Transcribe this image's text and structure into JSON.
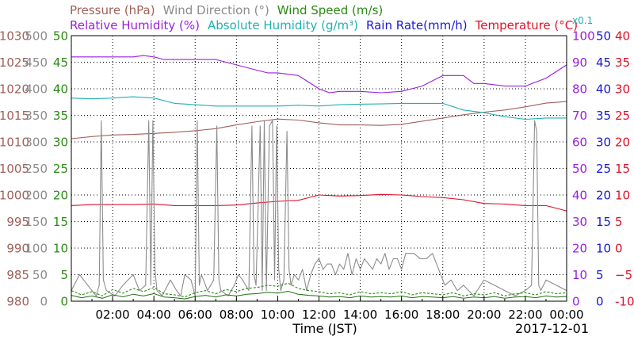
{
  "chart_data": {
    "type": "line",
    "date": "2017-12-01",
    "xlabel": "Time (JST)",
    "xlim": [
      0,
      24
    ],
    "x_tick_labels": [
      "02:00",
      "04:00",
      "06:00",
      "08:00",
      "10:00",
      "12:00",
      "14:00",
      "16:00",
      "18:00",
      "20:00",
      "22:00",
      "00:00"
    ],
    "grid": true,
    "legend": [
      {
        "label": "Pressure (hPa)",
        "color": "#a0605a"
      },
      {
        "label": "Wind Direction (°)",
        "color": "#8c8c8c"
      },
      {
        "label": "Wind Speed (m/s)",
        "color": "#2a8a14"
      },
      {
        "label": "Relative Humidity (%)",
        "color": "#9a1ee0"
      },
      {
        "label": "Absolute Humidity (g/m³)",
        "color": "#20b0b0"
      },
      {
        "label": "Rain Rate(mm/h)",
        "color": "#1a1ad0"
      },
      {
        "label": "Temperature (°C)",
        "color": "#e0102a"
      }
    ],
    "legend_sub": "x0.1",
    "axes": [
      {
        "name": "Pressure",
        "unit": "hPa",
        "side": "left",
        "ylim": [
          980,
          1030
        ],
        "ticks": [
          980,
          985,
          990,
          995,
          1000,
          1005,
          1010,
          1015,
          1020,
          1025,
          1030
        ],
        "color": "#a0605a"
      },
      {
        "name": "Wind Direction",
        "unit": "°",
        "side": "left",
        "ylim": [
          0,
          500
        ],
        "ticks": [
          0,
          50,
          100,
          150,
          200,
          250,
          300,
          350,
          400,
          450,
          500
        ],
        "color": "#8c8c8c"
      },
      {
        "name": "Wind Speed",
        "unit": "m/s",
        "side": "left",
        "ylim": [
          0,
          50
        ],
        "ticks": [
          0,
          5,
          10,
          15,
          20,
          25,
          30,
          35,
          40,
          45,
          50
        ],
        "color": "#2a8a14"
      },
      {
        "name": "Relative Humidity",
        "unit": "%",
        "side": "right",
        "ylim": [
          0,
          100
        ],
        "ticks": [
          0,
          10,
          20,
          30,
          40,
          50,
          60,
          70,
          80,
          90,
          100
        ],
        "color": "#9a1ee0"
      },
      {
        "name": "Rain Rate",
        "unit": "mm/h",
        "side": "right",
        "ylim": [
          0,
          50
        ],
        "ticks": [
          0,
          5,
          10,
          15,
          20,
          25,
          30,
          35,
          40,
          45,
          50
        ],
        "color": "#1a1ad0"
      },
      {
        "name": "Temperature",
        "unit": "°C",
        "side": "right",
        "ylim": [
          -10,
          40
        ],
        "ticks": [
          "-10",
          "−5",
          "0",
          "5",
          "10",
          "15",
          "20",
          "25",
          "30",
          "35",
          "40"
        ],
        "color": "#e0102a"
      }
    ],
    "series": [
      {
        "name": "Pressure (hPa)",
        "axis": "Pressure",
        "color": "#a0605a",
        "x": [
          0,
          1,
          2,
          3,
          4,
          5,
          6,
          7,
          8,
          9,
          10,
          11,
          12,
          13,
          14,
          15,
          16,
          17,
          18,
          19,
          20,
          21,
          22,
          23,
          24
        ],
        "y": [
          1010.6,
          1011.0,
          1011.3,
          1011.4,
          1011.6,
          1011.8,
          1012.1,
          1012.5,
          1013.2,
          1013.8,
          1014.3,
          1014.1,
          1013.6,
          1013.2,
          1013.2,
          1013.1,
          1013.3,
          1013.9,
          1014.5,
          1015.1,
          1015.6,
          1016.0,
          1016.6,
          1017.3,
          1017.6
        ]
      },
      {
        "name": "Relative Humidity (%)",
        "axis": "Relative Humidity",
        "color": "#9a1ee0",
        "x": [
          0,
          1,
          2,
          3,
          3.5,
          4,
          4.5,
          5,
          6,
          7,
          8,
          9,
          9.5,
          10,
          11,
          12,
          12.5,
          13,
          14,
          15,
          16,
          17,
          18,
          19,
          19.5,
          20,
          21,
          22,
          23,
          24
        ],
        "y": [
          92,
          92,
          92,
          92,
          92.5,
          92,
          91,
          91,
          91,
          91,
          89,
          87,
          86,
          86,
          85,
          80,
          78.5,
          79,
          79,
          78.5,
          79,
          81,
          85,
          85,
          82,
          82,
          81,
          81,
          84,
          89
        ]
      },
      {
        "name": "Absolute Humidity (g/m³)",
        "axis": "Relative Humidity",
        "scale": 0.1,
        "color": "#20b0b0",
        "x": [
          0,
          1,
          2,
          3,
          4,
          5,
          6,
          7,
          8,
          9,
          10,
          11,
          12,
          13,
          14,
          15,
          16,
          17,
          18,
          19,
          20,
          21,
          22,
          23,
          24
        ],
        "y": [
          76.5,
          76.2,
          76.5,
          77.0,
          76.5,
          74.5,
          74.0,
          73.5,
          73.5,
          73.5,
          73.5,
          73.8,
          73.5,
          74.0,
          74.2,
          74.3,
          74.5,
          74.5,
          74.5,
          72.0,
          71.0,
          69.5,
          68.5,
          69.0,
          69.0
        ]
      },
      {
        "name": "Temperature (°C)",
        "axis": "Temperature",
        "color": "#e0102a",
        "x": [
          0,
          1,
          2,
          3,
          4,
          5,
          6,
          7,
          8,
          9,
          10,
          11,
          12,
          13,
          14,
          15,
          16,
          17,
          18,
          19,
          20,
          21,
          22,
          23,
          24
        ],
        "y": [
          8.0,
          8.2,
          8.2,
          8.2,
          8.3,
          8.0,
          8.0,
          8.0,
          8.1,
          8.5,
          8.8,
          9.0,
          10.0,
          9.8,
          9.9,
          10.1,
          10.0,
          9.7,
          9.5,
          9.1,
          8.4,
          8.3,
          8.0,
          8.0,
          7.0
        ]
      },
      {
        "name": "Rain Rate(mm/h)",
        "axis": "Rain Rate",
        "color": "#1a1ad0",
        "x": [
          0,
          24
        ],
        "y": [
          0,
          0
        ]
      },
      {
        "name": "Wind Direction (°)",
        "axis": "Wind Direction",
        "color": "#8c8c8c",
        "x": [
          0,
          0.4,
          0.8,
          1.2,
          1.35,
          1.45,
          1.55,
          1.7,
          2.1,
          2.5,
          3.0,
          3.3,
          3.6,
          3.75,
          3.85,
          3.95,
          4.05,
          4.15,
          4.4,
          4.8,
          5.1,
          5.3,
          5.5,
          5.8,
          6.0,
          6.1,
          6.2,
          6.3,
          6.6,
          6.9,
          7.05,
          7.15,
          7.25,
          7.6,
          7.9,
          8.1,
          8.3,
          8.6,
          8.75,
          8.85,
          8.95,
          9.15,
          9.25,
          9.35,
          9.45,
          9.6,
          9.75,
          9.85,
          9.95,
          10.05,
          10.15,
          10.3,
          10.45,
          10.55,
          10.65,
          10.8,
          11.0,
          11.2,
          11.4,
          11.6,
          11.8,
          12.0,
          12.2,
          12.4,
          12.6,
          12.8,
          13.0,
          13.2,
          13.4,
          13.6,
          13.8,
          14.0,
          14.2,
          14.4,
          14.6,
          14.8,
          15.0,
          15.2,
          15.4,
          15.6,
          15.8,
          16.0,
          16.2,
          16.4,
          16.6,
          16.9,
          17.2,
          17.5,
          17.8,
          18.1,
          18.4,
          18.7,
          19.0,
          19.5,
          20.0,
          20.5,
          21.0,
          21.5,
          22.0,
          22.3,
          22.45,
          22.55,
          22.65,
          22.75,
          23.0,
          23.5,
          24.0
        ],
        "y": [
          20,
          50,
          30,
          10,
          30,
          340,
          40,
          20,
          10,
          30,
          50,
          20,
          30,
          340,
          30,
          340,
          60,
          20,
          10,
          40,
          20,
          10,
          50,
          40,
          10,
          340,
          30,
          50,
          20,
          40,
          330,
          40,
          20,
          10,
          30,
          50,
          40,
          20,
          330,
          50,
          30,
          330,
          20,
          340,
          20,
          330,
          340,
          40,
          330,
          60,
          20,
          40,
          320,
          60,
          30,
          50,
          40,
          60,
          20,
          50,
          70,
          80,
          60,
          70,
          70,
          50,
          70,
          60,
          90,
          50,
          80,
          60,
          80,
          70,
          60,
          80,
          70,
          90,
          60,
          80,
          80,
          60,
          90,
          90,
          90,
          80,
          80,
          90,
          60,
          30,
          40,
          20,
          30,
          10,
          40,
          30,
          20,
          10,
          20,
          30,
          340,
          320,
          30,
          20,
          40,
          30,
          20
        ]
      },
      {
        "name": "Wind Speed (m/s)",
        "axis": "Wind Speed",
        "color": "#2a8a14",
        "x": [
          0,
          0.5,
          1,
          1.5,
          2,
          2.5,
          3,
          3.5,
          4,
          4.5,
          5,
          5.5,
          6,
          6.5,
          7,
          7.5,
          8,
          8.5,
          9,
          9.5,
          10,
          10.5,
          11,
          11.5,
          12,
          12.5,
          13,
          13.5,
          14,
          14.5,
          15,
          15.5,
          16,
          16.5,
          17,
          17.5,
          18,
          18.5,
          19,
          19.5,
          20,
          20.5,
          21,
          21.5,
          22,
          22.5,
          23,
          23.5,
          24
        ],
        "y": [
          2.0,
          1.2,
          1.8,
          1.0,
          2.2,
          1.5,
          2.4,
          1.8,
          2.6,
          1.4,
          1.2,
          0.8,
          1.6,
          2.0,
          1.4,
          2.2,
          1.8,
          2.4,
          2.6,
          3.0,
          2.8,
          3.4,
          2.4,
          2.0,
          1.8,
          1.4,
          1.6,
          1.2,
          1.8,
          1.4,
          1.6,
          1.4,
          1.8,
          1.2,
          1.6,
          1.4,
          1.2,
          1.6,
          1.0,
          1.4,
          1.2,
          1.6,
          1.0,
          1.4,
          1.6,
          1.2,
          1.8,
          1.4,
          1.6
        ]
      }
    ]
  }
}
